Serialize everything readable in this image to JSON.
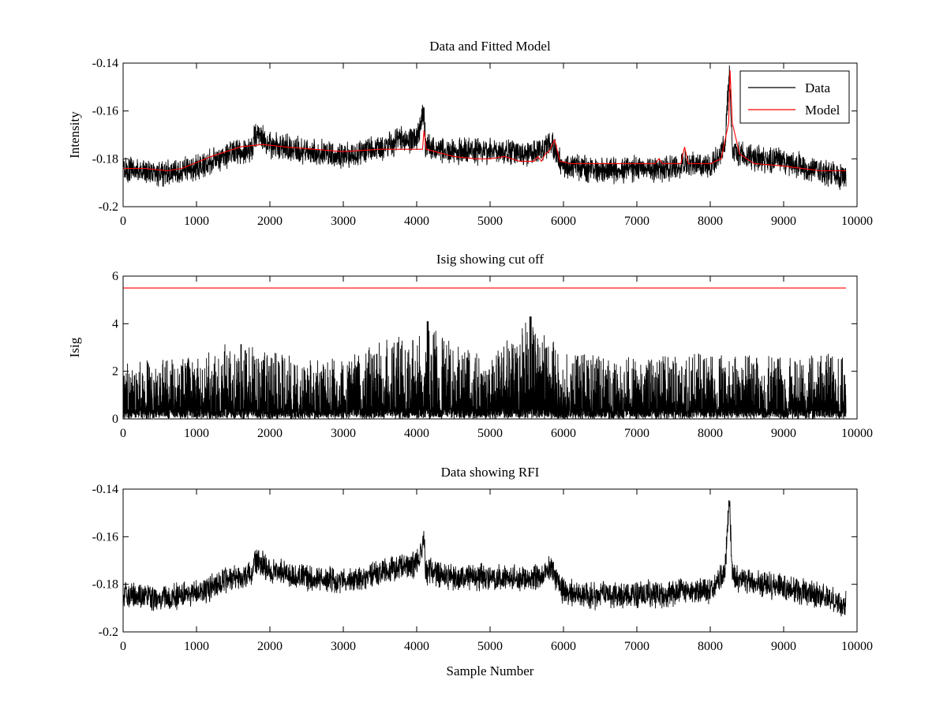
{
  "chart_data": [
    {
      "type": "line",
      "title": "Data and Fitted Model",
      "xlabel": "",
      "ylabel": "Intensity",
      "xlim": [
        0,
        10000
      ],
      "ylim": [
        -0.2,
        -0.14
      ],
      "x_ticks": [
        0,
        1000,
        2000,
        3000,
        4000,
        5000,
        6000,
        7000,
        8000,
        9000,
        10000
      ],
      "x_tick_labels": [
        "0",
        "1000",
        "2000",
        "3000",
        "4000",
        "5000",
        "6000",
        "7000",
        "8000",
        "9000",
        "10000"
      ],
      "y_ticks": [
        -0.2,
        -0.18,
        -0.16,
        -0.14
      ],
      "y_tick_labels": [
        "-0.2",
        "-0.18",
        "-0.16",
        "-0.14"
      ],
      "grid": false,
      "legend": {
        "placement": "top-right",
        "entries": [
          "Data",
          "Model"
        ]
      },
      "series": [
        {
          "name": "Data",
          "color": "#000000",
          "noise_amplitude": 0.0045,
          "x": [
            0,
            500,
            1000,
            1500,
            1750,
            1800,
            1900,
            2000,
            2500,
            3000,
            3500,
            3800,
            4000,
            4100,
            4120,
            4200,
            4500,
            5000,
            5200,
            5500,
            5700,
            5850,
            5950,
            6000,
            6500,
            7000,
            7500,
            7650,
            8000,
            8200,
            8260,
            8300,
            8400,
            8500,
            9000,
            9500,
            9850
          ],
          "y": [
            -0.184,
            -0.186,
            -0.184,
            -0.177,
            -0.176,
            -0.17,
            -0.171,
            -0.174,
            -0.177,
            -0.179,
            -0.175,
            -0.172,
            -0.172,
            -0.16,
            -0.174,
            -0.175,
            -0.177,
            -0.177,
            -0.177,
            -0.178,
            -0.176,
            -0.173,
            -0.181,
            -0.183,
            -0.185,
            -0.184,
            -0.184,
            -0.182,
            -0.183,
            -0.175,
            -0.143,
            -0.176,
            -0.178,
            -0.179,
            -0.181,
            -0.185,
            -0.188
          ]
        },
        {
          "name": "Model",
          "color": "#ff0000",
          "x": [
            0,
            300,
            600,
            800,
            1200,
            1600,
            1900,
            2200,
            2600,
            3000,
            3500,
            4000,
            4080,
            4100,
            4130,
            4500,
            4800,
            5000,
            5200,
            5400,
            5600,
            5650,
            5700,
            5750,
            5800,
            5880,
            5950,
            6100,
            6500,
            7000,
            7250,
            7300,
            7350,
            7600,
            7650,
            7700,
            8000,
            8150,
            8250,
            8270,
            8300,
            8400,
            8600,
            9000,
            9500,
            9850
          ],
          "y": [
            -0.184,
            -0.184,
            -0.185,
            -0.184,
            -0.179,
            -0.175,
            -0.174,
            -0.175,
            -0.176,
            -0.177,
            -0.176,
            -0.176,
            -0.176,
            -0.168,
            -0.176,
            -0.179,
            -0.18,
            -0.18,
            -0.179,
            -0.181,
            -0.181,
            -0.179,
            -0.181,
            -0.178,
            -0.177,
            -0.172,
            -0.181,
            -0.182,
            -0.182,
            -0.182,
            -0.182,
            -0.18,
            -0.182,
            -0.182,
            -0.175,
            -0.182,
            -0.182,
            -0.18,
            -0.165,
            -0.143,
            -0.165,
            -0.178,
            -0.182,
            -0.183,
            -0.185,
            -0.185
          ]
        }
      ]
    },
    {
      "type": "line",
      "title": "Isig showing cut off",
      "xlabel": "",
      "ylabel": "Isig",
      "xlim": [
        0,
        10000
      ],
      "ylim": [
        0,
        6
      ],
      "x_ticks": [
        0,
        1000,
        2000,
        3000,
        4000,
        5000,
        6000,
        7000,
        8000,
        9000,
        10000
      ],
      "x_tick_labels": [
        "0",
        "1000",
        "2000",
        "3000",
        "4000",
        "5000",
        "6000",
        "7000",
        "8000",
        "9000",
        "10000"
      ],
      "y_ticks": [
        0,
        2,
        4,
        6
      ],
      "y_tick_labels": [
        "0",
        "2",
        "4",
        "6"
      ],
      "grid": false,
      "cutoff": {
        "value": 5.5,
        "color": "#ff0000"
      },
      "series": [
        {
          "color": "#000000",
          "x": [
            0,
            1000,
            1500,
            2000,
            3000,
            3600,
            4000,
            4150,
            4500,
            5000,
            5550,
            6000,
            7000,
            8000,
            9000,
            9850
          ],
          "peak": [
            2.4,
            2.6,
            3.3,
            2.8,
            2.5,
            3.4,
            3.6,
            4.1,
            3.2,
            2.6,
            4.3,
            2.8,
            2.6,
            2.8,
            2.6,
            2.8
          ]
        }
      ]
    },
    {
      "type": "line",
      "title": "Data showing RFI",
      "xlabel": "Sample Number",
      "ylabel": "",
      "xlim": [
        0,
        10000
      ],
      "ylim": [
        -0.2,
        -0.14
      ],
      "x_ticks": [
        0,
        1000,
        2000,
        3000,
        4000,
        5000,
        6000,
        7000,
        8000,
        9000,
        10000
      ],
      "x_tick_labels": [
        "0",
        "1000",
        "2000",
        "3000",
        "4000",
        "5000",
        "6000",
        "7000",
        "8000",
        "9000",
        "10000"
      ],
      "y_ticks": [
        -0.2,
        -0.18,
        -0.16,
        -0.14
      ],
      "y_tick_labels": [
        "-0.2",
        "-0.18",
        "-0.16",
        "-0.14"
      ],
      "grid": false,
      "series": [
        {
          "color": "#000000",
          "noise_amplitude": 0.0045,
          "x": [
            0,
            500,
            1000,
            1500,
            1750,
            1800,
            1900,
            2000,
            2500,
            3000,
            3500,
            3800,
            4000,
            4100,
            4120,
            4200,
            4500,
            5000,
            5200,
            5500,
            5700,
            5850,
            5950,
            6000,
            6500,
            7000,
            7500,
            7650,
            8000,
            8200,
            8260,
            8300,
            8400,
            8500,
            9000,
            9500,
            9850
          ],
          "y": [
            -0.184,
            -0.186,
            -0.184,
            -0.177,
            -0.176,
            -0.17,
            -0.171,
            -0.174,
            -0.177,
            -0.179,
            -0.175,
            -0.172,
            -0.172,
            -0.16,
            -0.174,
            -0.175,
            -0.177,
            -0.177,
            -0.177,
            -0.178,
            -0.176,
            -0.173,
            -0.181,
            -0.183,
            -0.185,
            -0.184,
            -0.184,
            -0.182,
            -0.183,
            -0.175,
            -0.143,
            -0.176,
            -0.178,
            -0.179,
            -0.181,
            -0.185,
            -0.188
          ]
        }
      ]
    }
  ]
}
